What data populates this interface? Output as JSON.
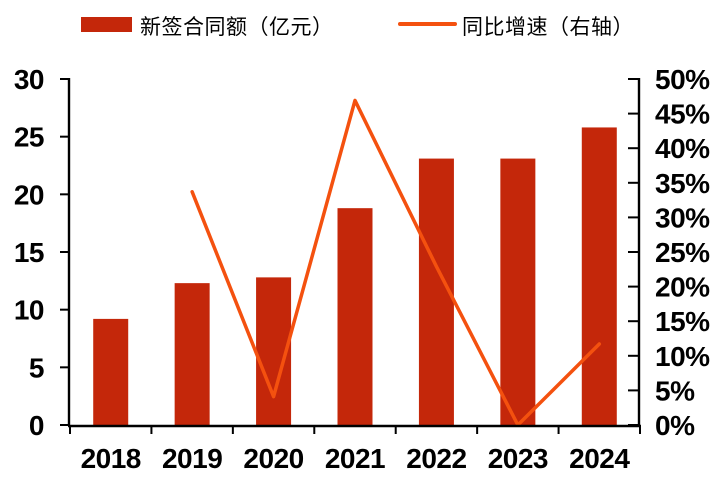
{
  "chart_data": {
    "type": "bar",
    "subtype": "bar-with-line-dual-axis",
    "title": "",
    "categories": [
      "2018",
      "2019",
      "2020",
      "2021",
      "2022",
      "2023",
      "2024"
    ],
    "series": [
      {
        "name": "新签合同额（亿元）",
        "type": "bar",
        "axis": "left",
        "color": "#C4270A",
        "values": [
          9.2,
          12.3,
          12.8,
          18.8,
          23.1,
          23.1,
          25.8
        ]
      },
      {
        "name": "同比增速（右轴）",
        "type": "line",
        "axis": "right",
        "color": "#F4510F",
        "unit": "%",
        "values": [
          null,
          33.7,
          4.1,
          46.9,
          22.9,
          0.0,
          11.7
        ]
      }
    ],
    "left_axis": {
      "min": 0,
      "max": 30,
      "step": 5,
      "tick_labels": [
        "0",
        "5",
        "10",
        "15",
        "20",
        "25",
        "30"
      ]
    },
    "right_axis": {
      "min": 0,
      "max": 50,
      "step": 5,
      "unit": "%",
      "tick_labels": [
        "0%",
        "5%",
        "10%",
        "15%",
        "20%",
        "25%",
        "30%",
        "35%",
        "40%",
        "45%",
        "50%"
      ]
    },
    "grid": false,
    "legend_position": "top",
    "xlabel": "",
    "ylabel": ""
  },
  "colors": {
    "bar": "#C4270A",
    "line": "#F4510F",
    "axis": "#000000",
    "background": "#FFFFFF",
    "text": "#000000"
  }
}
